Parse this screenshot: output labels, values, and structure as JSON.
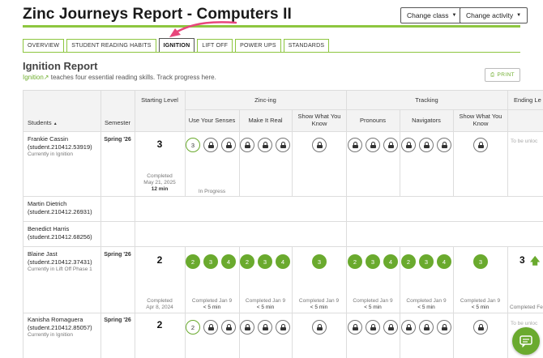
{
  "header": {
    "title": "Zinc Journeys Report - Computers II",
    "change_class": "Change class",
    "change_activity": "Change activity"
  },
  "tabs": [
    "OVERVIEW",
    "STUDENT READING HABITS",
    "IGNITION",
    "LIFT OFF",
    "POWER UPS",
    "STANDARDS"
  ],
  "report": {
    "title": "Ignition Report",
    "link_text": "Ignition",
    "description": " teaches four essential reading skills. Track progress here.",
    "print": "PRINT"
  },
  "columns": {
    "students": "Students",
    "semester": "Semester",
    "starting_level": "Starting Level",
    "zincing": "Zinc-ing",
    "tracking": "Tracking",
    "ending_level": "Ending Le",
    "use_senses": "Use Your Senses",
    "make_real": "Make It Real",
    "show_know_1": "Show What You Know",
    "pronouns": "Pronouns",
    "navigators": "Navigators",
    "show_know_2": "Show What You Know"
  },
  "rows": [
    {
      "name": "Frankie Cassin",
      "id": "(student.210412.53919)",
      "status": "Currently in Ignition",
      "semester": "Spring '26",
      "start_level": "3",
      "start_completed": "Completed",
      "start_date": "May 21, 2025",
      "start_time": "12 min",
      "senses_status": "In Progress",
      "ending": "To be unloc"
    },
    {
      "name": "Martin Dietrich",
      "id": "(student.210412.26931)"
    },
    {
      "name": "Benedict Harris",
      "id": "(student.210412.68256)"
    },
    {
      "name": "Blaine Jast",
      "id": "(student.210412.37431)",
      "status": "Currently in Lift Off Phase 1",
      "semester": "Spring '26",
      "start_level": "2",
      "start_completed": "Completed",
      "start_date": "Apr 8, 2024",
      "completed_label": "Completed Jan 9",
      "time_label": "< 5 min",
      "end_level": "3",
      "end_completed": "Completed Fe"
    },
    {
      "name": "Kanisha Romaguera",
      "id": "(student.210412.85057)",
      "status": "Currently in Ignition",
      "semester": "Spring '26",
      "start_level": "2",
      "ending": "To be unloc"
    }
  ],
  "nums": [
    "2",
    "3",
    "4"
  ],
  "colors": {
    "brand_green": "#8dc63f",
    "done_green": "#6aaa2e",
    "arrow_pink": "#e8467c"
  }
}
